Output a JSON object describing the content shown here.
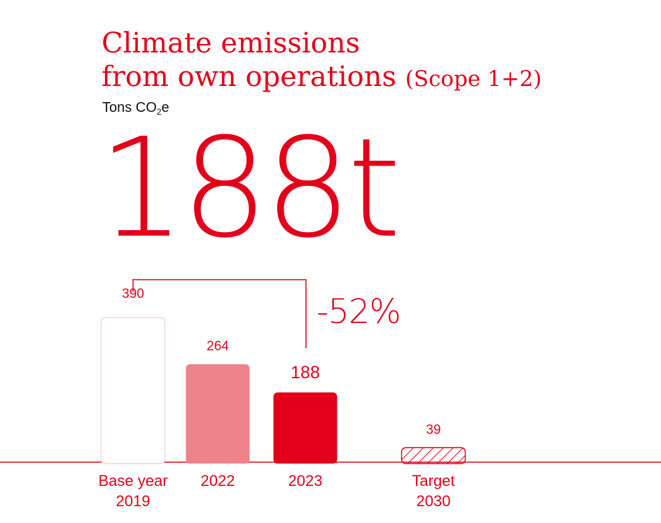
{
  "header": {
    "title_line1": "Climate emissions",
    "title_line2": "from own operations",
    "title_suffix": "(Scope 1+2)",
    "unit_prefix": "Tons CO",
    "unit_sub": "2",
    "unit_suffix": "e"
  },
  "headline": {
    "value": "188t"
  },
  "change": {
    "label": "-52%",
    "from": "Base year 2019",
    "to": "2023"
  },
  "colors": {
    "accent": "#e2001a",
    "light": "#ee828b",
    "base_outline": "#f7d6da"
  },
  "chart_data": {
    "type": "bar",
    "categories": [
      [
        "Base year",
        "2019"
      ],
      [
        "2022"
      ],
      [
        "2023"
      ],
      [
        "Target",
        "2030"
      ]
    ],
    "values": [
      390,
      264,
      188,
      39
    ],
    "value_labels": [
      "390",
      "264",
      "188",
      "39"
    ],
    "bar_styles": [
      "outline",
      "light",
      "solid",
      "hatched"
    ],
    "ylim": [
      0,
      390
    ],
    "grid": false,
    "title": "",
    "xlabel": "",
    "ylabel": ""
  }
}
